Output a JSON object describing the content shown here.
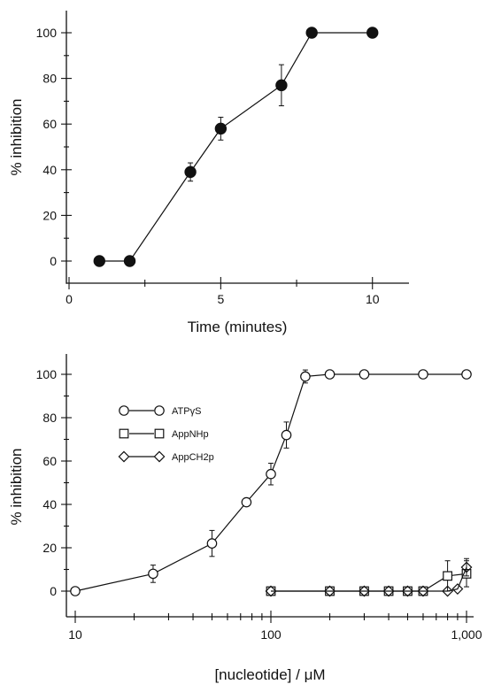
{
  "chart_data": [
    {
      "type": "line",
      "title": "",
      "xlabel": "Time (minutes)",
      "ylabel": "% inhibition",
      "xlim": [
        0,
        11
      ],
      "ylim": [
        -10,
        110
      ],
      "x_ticks": [
        0,
        5,
        10
      ],
      "x_tick_labels": [
        "0",
        "5",
        "10"
      ],
      "y_ticks": [
        0,
        20,
        40,
        60,
        80,
        100
      ],
      "y_tick_labels": [
        "0",
        "20",
        "40",
        "60",
        "80",
        "100"
      ],
      "grid": false,
      "legend": "none",
      "series": [
        {
          "marker": "filled-circle",
          "x": [
            1,
            2,
            4,
            5,
            7,
            8,
            10
          ],
          "y": [
            0,
            0,
            39,
            58,
            77,
            100,
            100
          ],
          "error": [
            0,
            0,
            4,
            5,
            9,
            0,
            0
          ]
        }
      ]
    },
    {
      "type": "line",
      "title": "",
      "xlabel": "[nucleotide] / μM",
      "ylabel": "% inhibition",
      "x_scale": "log",
      "xlim": [
        10,
        1000
      ],
      "ylim": [
        -10,
        110
      ],
      "x_ticks": [
        10,
        100,
        1000
      ],
      "x_tick_labels": [
        "10",
        "100",
        "1,000"
      ],
      "y_ticks": [
        0,
        20,
        40,
        60,
        80,
        100
      ],
      "y_tick_labels": [
        "0",
        "20",
        "40",
        "60",
        "80",
        "100"
      ],
      "grid": false,
      "legend": "top-left",
      "series": [
        {
          "name": "ATPγS",
          "marker": "open-circle",
          "x": [
            10,
            25,
            50,
            75,
            100,
            120,
            150,
            200,
            300,
            600,
            1000
          ],
          "y": [
            0,
            8,
            22,
            41,
            54,
            72,
            99,
            100,
            100,
            100,
            100
          ],
          "error": [
            0,
            4,
            6,
            0,
            5,
            6,
            3,
            0,
            0,
            0,
            0
          ]
        },
        {
          "name": "AppNHp",
          "marker": "open-square",
          "x": [
            100,
            200,
            300,
            400,
            500,
            600,
            800,
            1000
          ],
          "y": [
            0,
            0,
            0,
            0,
            0,
            0,
            7,
            8
          ],
          "error": [
            0,
            0,
            0,
            0,
            0,
            0,
            7,
            6
          ]
        },
        {
          "name": "AppCH2p",
          "marker": "open-diamond",
          "x": [
            100,
            200,
            300,
            400,
            500,
            600,
            800,
            900,
            1000
          ],
          "y": [
            0,
            0,
            0,
            0,
            0,
            0,
            0,
            1,
            11
          ],
          "error": [
            0,
            0,
            0,
            0,
            0,
            0,
            0,
            0,
            4
          ]
        }
      ]
    }
  ]
}
